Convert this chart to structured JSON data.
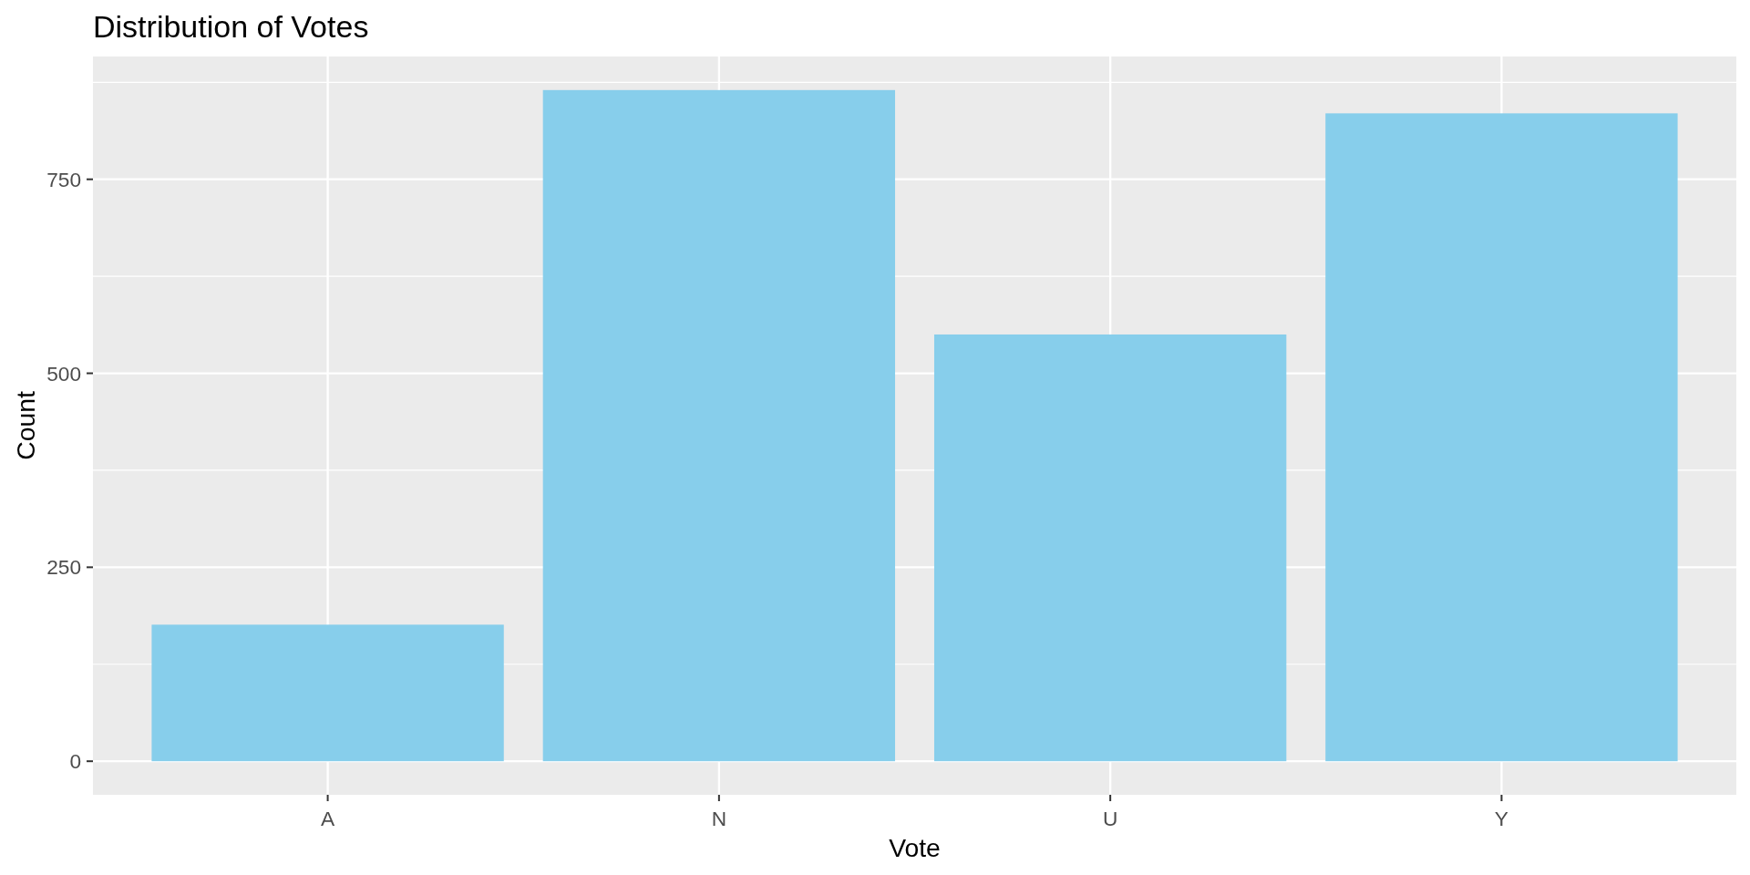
{
  "chart_data": {
    "type": "bar",
    "title": "Distribution of Votes",
    "xlabel": "Vote",
    "ylabel": "Count",
    "categories": [
      "A",
      "N",
      "U",
      "Y"
    ],
    "values": [
      176,
      865,
      550,
      835
    ],
    "color": "#87ceeb",
    "ylim": [
      -43.25,
      908.25
    ],
    "yticks": [
      0,
      250,
      500,
      750
    ],
    "grid": true
  }
}
